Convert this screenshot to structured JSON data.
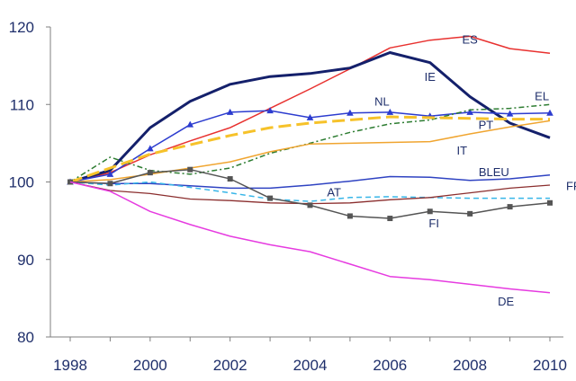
{
  "chart_data": {
    "type": "line",
    "title": "",
    "xlabel": "",
    "ylabel": "",
    "x": [
      1998,
      1999,
      2000,
      2001,
      2002,
      2003,
      2004,
      2005,
      2006,
      2007,
      2008,
      2009,
      2010
    ],
    "xticks": [
      "1998",
      "2000",
      "2002",
      "2004",
      "2006",
      "2008",
      "2010"
    ],
    "yticks": [
      "80",
      "90",
      "100",
      "110",
      "120"
    ],
    "ylim": [
      80,
      120
    ],
    "xlim": [
      1998,
      2010
    ],
    "grid": false,
    "legend": "inline labels",
    "series": [
      {
        "name": "ES",
        "color": "#e8312f",
        "width": 1.5,
        "dash": "",
        "marker": "",
        "values": [
          100,
          101.2,
          103.5,
          105.3,
          107.0,
          109.5,
          112.0,
          114.6,
          117.3,
          118.3,
          118.8,
          117.2,
          116.6
        ]
      },
      {
        "name": "IE",
        "color": "#14206b",
        "width": 3,
        "dash": "",
        "marker": "",
        "values": [
          100,
          101.5,
          107.0,
          110.4,
          112.6,
          113.6,
          114.0,
          114.7,
          116.7,
          115.4,
          111.0,
          107.6,
          105.7
        ]
      },
      {
        "name": "NL",
        "color": "#2c3ccf",
        "width": 1.5,
        "dash": "",
        "marker": "triangle",
        "values": [
          100,
          101.0,
          104.3,
          107.4,
          109.0,
          109.2,
          108.3,
          108.9,
          109.0,
          108.5,
          109.0,
          108.8,
          108.9
        ]
      },
      {
        "name": "EL",
        "color": "#2e7d32",
        "width": 1.5,
        "dash": "6,3,2,3",
        "marker": "",
        "values": [
          100,
          103.2,
          101.5,
          101.0,
          101.8,
          103.7,
          105.0,
          106.4,
          107.5,
          108.0,
          109.3,
          109.5,
          110.0
        ]
      },
      {
        "name": "PT",
        "color": "#f6c22a",
        "width": 3,
        "dash": "14,6",
        "marker": "",
        "values": [
          100,
          101.8,
          103.6,
          104.8,
          106.0,
          107.0,
          107.6,
          108.0,
          108.4,
          108.3,
          108.2,
          108.1,
          108.1
        ]
      },
      {
        "name": "IT",
        "color": "#f0a530",
        "width": 1.5,
        "dash": "",
        "marker": "",
        "values": [
          100,
          100.3,
          101.0,
          101.8,
          102.6,
          103.9,
          104.9,
          105.0,
          105.1,
          105.2,
          106.2,
          107.1,
          107.9
        ]
      },
      {
        "name": "BLEU",
        "color": "#2f43c2",
        "width": 1.5,
        "dash": "",
        "marker": "",
        "values": [
          100,
          99.8,
          99.8,
          99.5,
          99.2,
          99.2,
          99.6,
          100.1,
          100.7,
          100.6,
          100.2,
          100.4,
          100.9
        ]
      },
      {
        "name": "AT",
        "color": "#38b6e8",
        "width": 1.5,
        "dash": "6,4",
        "marker": "",
        "values": [
          100,
          99.6,
          100.0,
          99.3,
          98.6,
          97.8,
          97.5,
          98.0,
          98.1,
          98.0,
          97.9,
          97.9,
          97.9
        ]
      },
      {
        "name": "FR",
        "color": "#8b2e2e",
        "width": 1.3,
        "dash": "",
        "marker": "",
        "values": [
          100,
          98.9,
          98.5,
          97.8,
          97.6,
          97.3,
          97.2,
          97.3,
          97.7,
          98.0,
          98.6,
          99.2,
          99.6
        ]
      },
      {
        "name": "FI",
        "color": "#555555",
        "width": 1.5,
        "dash": "",
        "marker": "square",
        "values": [
          100,
          99.8,
          101.2,
          101.6,
          100.4,
          97.9,
          97.0,
          95.6,
          95.3,
          96.2,
          95.9,
          96.8,
          97.3
        ]
      },
      {
        "name": "DE",
        "color": "#e63be0",
        "width": 1.5,
        "dash": "",
        "marker": "",
        "values": [
          100,
          98.8,
          96.2,
          94.5,
          93.0,
          91.9,
          91.0,
          89.4,
          87.8,
          87.4,
          86.8,
          86.2,
          85.7
        ]
      }
    ],
    "series_labels": [
      {
        "text": "ES",
        "x": 2008.0,
        "y": 118.3
      },
      {
        "text": "IE",
        "x": 2007.0,
        "y": 113.5
      },
      {
        "text": "NL",
        "x": 2005.8,
        "y": 110.3
      },
      {
        "text": "EL",
        "x": 2009.8,
        "y": 111.0
      },
      {
        "text": "PT",
        "x": 2008.4,
        "y": 107.3
      },
      {
        "text": "IT",
        "x": 2007.8,
        "y": 104.0
      },
      {
        "text": "BLEU",
        "x": 2008.6,
        "y": 101.2
      },
      {
        "text": "AT",
        "x": 2004.6,
        "y": 98.6
      },
      {
        "text": "FR",
        "x": 2010.6,
        "y": 99.4
      },
      {
        "text": "FI",
        "x": 2007.1,
        "y": 94.6
      },
      {
        "text": "DE",
        "x": 2008.9,
        "y": 84.5
      }
    ]
  }
}
